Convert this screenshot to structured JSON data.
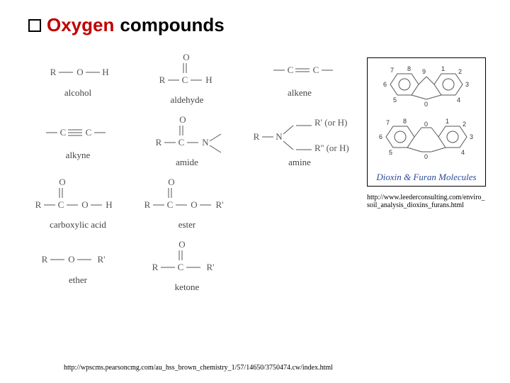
{
  "title": {
    "bullet_border": "#000000",
    "word1": "Oxygen",
    "word2": "compounds",
    "color1": "#c00000",
    "color2": "#000000",
    "fontsize": 26
  },
  "structures": [
    {
      "name": "alcohol",
      "type": "ROH"
    },
    {
      "name": "aldehyde",
      "type": "RCHO"
    },
    {
      "name": "alkene",
      "type": "CC_double"
    },
    {
      "name": "alkyne",
      "type": "CC_triple"
    },
    {
      "name": "amide",
      "type": "RCON"
    },
    {
      "name": "amine",
      "type": "RNR2"
    },
    {
      "name": "carboxylic acid",
      "type": "RCOOH"
    },
    {
      "name": "ester",
      "type": "RCOOR"
    },
    {
      "name": "",
      "type": "blank"
    },
    {
      "name": "ether",
      "type": "ROR"
    },
    {
      "name": "ketone",
      "type": "RCOR"
    },
    {
      "name": "",
      "type": "blank"
    }
  ],
  "struct_style": {
    "label_fontsize": 13,
    "label_color": "#444444",
    "line_color": "#555555",
    "atom_color": "#555555",
    "atom_fontsize": 13
  },
  "sidebox": {
    "caption": "Dioxin & Furan Molecules",
    "caption_color": "#2a4a9a",
    "border_color": "#000000",
    "ring_stroke": "#333333",
    "num_labels_top": [
      "9",
      "1",
      "2",
      "3",
      "4",
      "0",
      "5",
      "6",
      "7",
      "8"
    ],
    "num_labels_bottom": [
      "0",
      "1",
      "2",
      "3",
      "4",
      "0",
      "5",
      "6",
      "7",
      "8"
    ]
  },
  "urls": {
    "side": "http://www.leederconsulting.com/enviro_soil_analysis_dioxins_furans.html",
    "bottom": "http://wpscms.pearsoncmg.com/au_hss_brown_chemistry_1/57/14650/3750474.cw/index.html"
  }
}
